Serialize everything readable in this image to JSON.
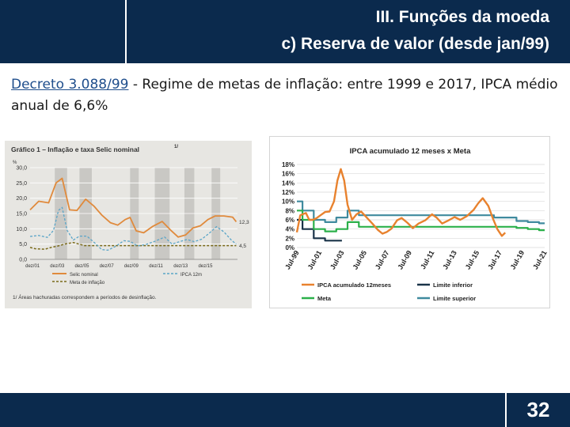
{
  "header": {
    "title_line1": "III. Funções da moeda",
    "title_line2": "c) Reserva de valor (desde jan/99)"
  },
  "intro": {
    "link_text": "Decreto 3.088/99",
    "text_rest": " - Regime de metas de inflação: entre 1999 e 2017, IPCA médio anual de 6,6%"
  },
  "footer": {
    "page_number": "32"
  },
  "colors": {
    "header_bg": "#0b2a4d",
    "ipca": "#e8822e",
    "meta": "#2bb04a",
    "limite_inferior": "#1a3348",
    "limite_superior": "#3f8a9e",
    "selic": "#e08a3c",
    "meta_left": "#7a6a1a",
    "ipca_left": "#5aa5c8"
  },
  "chart_data": [
    {
      "type": "line",
      "title": "Gráfico 1 – Inflação e taxa Selic nominal",
      "title_superscript": "1/",
      "ylabel": "%",
      "ylim": [
        0,
        30
      ],
      "y_ticks": [
        "0,0",
        "5,0",
        "10,0",
        "15,0",
        "20,0",
        "25,0",
        "30,0"
      ],
      "categories": [
        "dez/01",
        "dez/03",
        "dez/05",
        "dez/07",
        "dez/09",
        "dez/11",
        "dez/13",
        "dez/15"
      ],
      "x": [
        2001,
        2003,
        2005,
        2007,
        2009,
        2011,
        2013,
        2015
      ],
      "xlim": [
        2000.8,
        2017.6
      ],
      "shaded_periods": [
        [
          2002.8,
          2003.8
        ],
        [
          2004.8,
          2005.8
        ],
        [
          2008.9,
          2009.6
        ],
        [
          2010.9,
          2012.1
        ],
        [
          2013.3,
          2014.1
        ],
        [
          2015.5,
          2016.2
        ]
      ],
      "series": [
        {
          "name": "Selic nominal",
          "points": [
            [
              2000.8,
              16.2
            ],
            [
              2001.5,
              19
            ],
            [
              2002.3,
              18.5
            ],
            [
              2002.9,
              25
            ],
            [
              2003.4,
              26.5
            ],
            [
              2004,
              16.2
            ],
            [
              2004.6,
              16
            ],
            [
              2005.3,
              19.7
            ],
            [
              2006,
              17.3
            ],
            [
              2006.6,
              14.5
            ],
            [
              2007.3,
              12
            ],
            [
              2007.9,
              11.2
            ],
            [
              2008.5,
              13
            ],
            [
              2008.9,
              13.7
            ],
            [
              2009.4,
              9.3
            ],
            [
              2010,
              8.7
            ],
            [
              2010.7,
              10.7
            ],
            [
              2011.5,
              12.4
            ],
            [
              2012.2,
              9.5
            ],
            [
              2012.8,
              7.3
            ],
            [
              2013.4,
              8
            ],
            [
              2014,
              10.3
            ],
            [
              2014.6,
              11
            ],
            [
              2015.2,
              13
            ],
            [
              2015.8,
              14.2
            ],
            [
              2016.5,
              14.2
            ],
            [
              2017.2,
              13.8
            ],
            [
              2017.5,
              12.3
            ]
          ]
        },
        {
          "name": "Meta de inflação",
          "points": [
            [
              2000.8,
              3.9
            ],
            [
              2001.2,
              3.5
            ],
            [
              2002,
              3.3
            ],
            [
              2002.6,
              4
            ],
            [
              2003,
              4.3
            ],
            [
              2003.6,
              5
            ],
            [
              2004.3,
              5.5
            ],
            [
              2005.2,
              4.5
            ],
            [
              2017.5,
              4.5
            ]
          ]
        },
        {
          "name": "IPCA 12m",
          "points": [
            [
              2000.8,
              7.5
            ],
            [
              2001.5,
              7.8
            ],
            [
              2002.2,
              7.2
            ],
            [
              2002.7,
              9.5
            ],
            [
              2003.1,
              16
            ],
            [
              2003.4,
              17
            ],
            [
              2003.8,
              9.5
            ],
            [
              2004.3,
              6.3
            ],
            [
              2004.8,
              7.6
            ],
            [
              2005.4,
              7.6
            ],
            [
              2006,
              5.5
            ],
            [
              2006.6,
              3.2
            ],
            [
              2007.1,
              3
            ],
            [
              2007.7,
              4.2
            ],
            [
              2008.4,
              6.1
            ],
            [
              2008.9,
              5.9
            ],
            [
              2009.5,
              4.4
            ],
            [
              2010.2,
              4.9
            ],
            [
              2010.9,
              5.9
            ],
            [
              2011.7,
              7.3
            ],
            [
              2012.3,
              5
            ],
            [
              2012.9,
              5.8
            ],
            [
              2013.5,
              6.5
            ],
            [
              2014.1,
              5.8
            ],
            [
              2014.7,
              6.6
            ],
            [
              2015.3,
              8.5
            ],
            [
              2015.9,
              10.7
            ],
            [
              2016.5,
              9
            ],
            [
              2017.1,
              6.3
            ],
            [
              2017.5,
              5
            ]
          ]
        }
      ],
      "value_labels": [
        {
          "text": "12,3",
          "y": 12.3
        },
        {
          "text": "4,5",
          "y": 4.5
        }
      ],
      "legend": [
        "Selic nominal",
        "Meta de inflação",
        "IPCA 12m"
      ],
      "footnote": "1/ Áreas hachuradas correspondem a períodos de desinflação."
    },
    {
      "type": "line",
      "title": "IPCA acumulado 12 meses x Meta",
      "ylim": [
        0,
        18
      ],
      "y_ticks": [
        "18%",
        "16%",
        "14%",
        "12%",
        "10%",
        "8%",
        "6%",
        "4%",
        "2%",
        "0%"
      ],
      "categories": [
        "Jul-99",
        "Jul-01",
        "Jul-03",
        "Jul-05",
        "Jul-07",
        "Jul-09",
        "Jul-11",
        "Jul-13",
        "Jul-15",
        "Jul-17",
        "Jul-19",
        "Jul-21"
      ],
      "x": [
        1999.5,
        2001.5,
        2003.5,
        2005.5,
        2007.5,
        2009.5,
        2011.5,
        2013.5,
        2015.5,
        2017.5,
        2019.5,
        2021.5
      ],
      "xlim": [
        1999.5,
        2021.5
      ],
      "series": [
        {
          "name": "IPCA acumulado 12meses",
          "points": [
            [
              1999.5,
              3.3
            ],
            [
              1999.8,
              7
            ],
            [
              2000.3,
              7.5
            ],
            [
              2000.6,
              6
            ],
            [
              2000.9,
              6
            ],
            [
              2001.2,
              6.3
            ],
            [
              2001.6,
              7
            ],
            [
              2002,
              7.7
            ],
            [
              2002.4,
              7.8
            ],
            [
              2002.8,
              10
            ],
            [
              2003.1,
              14.5
            ],
            [
              2003.4,
              17
            ],
            [
              2003.7,
              14.5
            ],
            [
              2004,
              9.3
            ],
            [
              2004.4,
              6
            ],
            [
              2004.8,
              7.2
            ],
            [
              2005.2,
              7.8
            ],
            [
              2005.7,
              6.5
            ],
            [
              2006.2,
              5.2
            ],
            [
              2006.7,
              3.8
            ],
            [
              2007.1,
              3
            ],
            [
              2007.5,
              3.4
            ],
            [
              2007.9,
              4.1
            ],
            [
              2008.4,
              5.9
            ],
            [
              2008.8,
              6.4
            ],
            [
              2009.3,
              5.4
            ],
            [
              2009.8,
              4.2
            ],
            [
              2010.3,
              5.2
            ],
            [
              2010.9,
              5.9
            ],
            [
              2011.5,
              7.2
            ],
            [
              2011.9,
              6.5
            ],
            [
              2012.4,
              5.2
            ],
            [
              2012.9,
              5.8
            ],
            [
              2013.5,
              6.6
            ],
            [
              2014,
              6
            ],
            [
              2014.6,
              6.8
            ],
            [
              2015.2,
              8.2
            ],
            [
              2015.6,
              9.6
            ],
            [
              2016,
              10.7
            ],
            [
              2016.5,
              9
            ],
            [
              2016.9,
              6.3
            ],
            [
              2017.3,
              4
            ],
            [
              2017.7,
              2.5
            ],
            [
              2018,
              3.2
            ]
          ]
        },
        {
          "name": "Meta",
          "points": [
            [
              1999.5,
              8
            ],
            [
              2000,
              8
            ],
            [
              2000,
              6
            ],
            [
              2001,
              6
            ],
            [
              2001,
              4
            ],
            [
              2002,
              4
            ],
            [
              2002,
              3.5
            ],
            [
              2003,
              3.5
            ],
            [
              2003,
              4
            ],
            [
              2004,
              4
            ],
            [
              2004,
              5.5
            ],
            [
              2005,
              5.5
            ],
            [
              2005,
              4.5
            ],
            [
              2019,
              4.5
            ],
            [
              2019,
              4.25
            ],
            [
              2020,
              4.25
            ],
            [
              2020,
              4
            ],
            [
              2021,
              4
            ],
            [
              2021,
              3.75
            ],
            [
              2021.5,
              3.75
            ]
          ]
        },
        {
          "name": "Limite inferior",
          "points": [
            [
              1999.5,
              6
            ],
            [
              2000,
              6
            ],
            [
              2000,
              4
            ],
            [
              2001,
              4
            ],
            [
              2001,
              2
            ],
            [
              2002,
              2
            ],
            [
              2002,
              1.5
            ],
            [
              2003,
              1.5
            ],
            [
              2003.5,
              1.5
            ]
          ]
        },
        {
          "name": "Limite superior",
          "points": [
            [
              1999.5,
              10
            ],
            [
              2000,
              10
            ],
            [
              2000,
              8
            ],
            [
              2001,
              8
            ],
            [
              2001,
              6
            ],
            [
              2002,
              6
            ],
            [
              2002,
              5.5
            ],
            [
              2003,
              5.5
            ],
            [
              2003,
              6.5
            ],
            [
              2004,
              6.5
            ],
            [
              2004,
              8
            ],
            [
              2005,
              8
            ],
            [
              2005,
              7
            ],
            [
              2017,
              7
            ],
            [
              2017,
              6.5
            ],
            [
              2019,
              6.5
            ],
            [
              2019,
              5.75
            ],
            [
              2020,
              5.75
            ],
            [
              2020,
              5.5
            ],
            [
              2021,
              5.5
            ],
            [
              2021,
              5.25
            ],
            [
              2021.5,
              5.25
            ]
          ]
        }
      ],
      "legend": [
        "IPCA acumulado 12meses",
        "Limite inferior",
        "Meta",
        "Limite superior"
      ],
      "legend_placement": "bottom",
      "grid": true
    }
  ]
}
